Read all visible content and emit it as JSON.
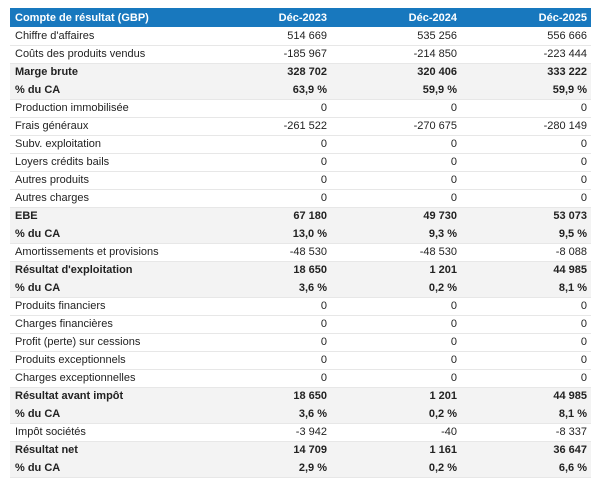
{
  "colors": {
    "header_bg": "#1878be",
    "header_text": "#ffffff",
    "band_bg": "#f3f3f3",
    "row_border": "#e7e7e7",
    "text": "#222222"
  },
  "table": {
    "header": {
      "label": "Compte de résultat (GBP)",
      "columns": [
        "Déc-2023",
        "Déc-2024",
        "Déc-2025"
      ]
    },
    "rows": [
      {
        "label": "Chiffre d'affaires",
        "values": [
          "514 669",
          "535 256",
          "556 666"
        ],
        "style": "normal"
      },
      {
        "label": "Coûts des produits vendus",
        "values": [
          "-185 967",
          "-214 850",
          "-223 444"
        ],
        "style": "normal"
      },
      {
        "label": "Marge brute",
        "values": [
          "328 702",
          "320 406",
          "333 222"
        ],
        "style": "band"
      },
      {
        "label": "% du CA",
        "values": [
          "63,9 %",
          "59,9 %",
          "59,9 %"
        ],
        "style": "band"
      },
      {
        "label": "Production immobilisée",
        "values": [
          "0",
          "0",
          "0"
        ],
        "style": "normal"
      },
      {
        "label": "Frais généraux",
        "values": [
          "-261 522",
          "-270 675",
          "-280 149"
        ],
        "style": "normal"
      },
      {
        "label": "Subv. exploitation",
        "values": [
          "0",
          "0",
          "0"
        ],
        "style": "normal"
      },
      {
        "label": "Loyers crédits bails",
        "values": [
          "0",
          "0",
          "0"
        ],
        "style": "normal"
      },
      {
        "label": "Autres produits",
        "values": [
          "0",
          "0",
          "0"
        ],
        "style": "normal"
      },
      {
        "label": "Autres charges",
        "values": [
          "0",
          "0",
          "0"
        ],
        "style": "normal"
      },
      {
        "label": "EBE",
        "values": [
          "67 180",
          "49 730",
          "53 073"
        ],
        "style": "band"
      },
      {
        "label": "% du CA",
        "values": [
          "13,0 %",
          "9,3 %",
          "9,5 %"
        ],
        "style": "band"
      },
      {
        "label": "Amortissements et provisions",
        "values": [
          "-48 530",
          "-48 530",
          "-8 088"
        ],
        "style": "normal"
      },
      {
        "label": "Résultat d'exploitation",
        "values": [
          "18 650",
          "1 201",
          "44 985"
        ],
        "style": "band"
      },
      {
        "label": "% du CA",
        "values": [
          "3,6 %",
          "0,2 %",
          "8,1 %"
        ],
        "style": "band"
      },
      {
        "label": "Produits financiers",
        "values": [
          "0",
          "0",
          "0"
        ],
        "style": "normal"
      },
      {
        "label": "Charges financières",
        "values": [
          "0",
          "0",
          "0"
        ],
        "style": "normal"
      },
      {
        "label": "Profit (perte) sur cessions",
        "values": [
          "0",
          "0",
          "0"
        ],
        "style": "normal"
      },
      {
        "label": "Produits exceptionnels",
        "values": [
          "0",
          "0",
          "0"
        ],
        "style": "normal"
      },
      {
        "label": "Charges exceptionnelles",
        "values": [
          "0",
          "0",
          "0"
        ],
        "style": "normal"
      },
      {
        "label": "Résultat avant impôt",
        "values": [
          "18 650",
          "1 201",
          "44 985"
        ],
        "style": "band"
      },
      {
        "label": "% du CA",
        "values": [
          "3,6 %",
          "0,2 %",
          "8,1 %"
        ],
        "style": "band"
      },
      {
        "label": "Impôt sociétés",
        "values": [
          "-3 942",
          "-40",
          "-8 337"
        ],
        "style": "normal"
      },
      {
        "label": "Résultat net",
        "values": [
          "14 709",
          "1 161",
          "36 647"
        ],
        "style": "band"
      },
      {
        "label": "% du CA",
        "values": [
          "2,9 %",
          "0,2 %",
          "6,6 %"
        ],
        "style": "band"
      }
    ]
  },
  "chart_data": {
    "type": "table",
    "title": "Compte de résultat (GBP)",
    "columns": [
      "Déc-2023",
      "Déc-2024",
      "Déc-2025"
    ],
    "currency": "GBP",
    "rows": [
      {
        "label": "Chiffre d'affaires",
        "values": [
          514669,
          535256,
          556666
        ],
        "unit": "GBP"
      },
      {
        "label": "Coûts des produits vendus",
        "values": [
          -185967,
          -214850,
          -223444
        ],
        "unit": "GBP"
      },
      {
        "label": "Marge brute",
        "values": [
          328702,
          320406,
          333222
        ],
        "unit": "GBP"
      },
      {
        "label": "% du CA",
        "values": [
          63.9,
          59.9,
          59.9
        ],
        "unit": "%"
      },
      {
        "label": "Production immobilisée",
        "values": [
          0,
          0,
          0
        ],
        "unit": "GBP"
      },
      {
        "label": "Frais généraux",
        "values": [
          -261522,
          -270675,
          -280149
        ],
        "unit": "GBP"
      },
      {
        "label": "Subv. exploitation",
        "values": [
          0,
          0,
          0
        ],
        "unit": "GBP"
      },
      {
        "label": "Loyers crédits bails",
        "values": [
          0,
          0,
          0
        ],
        "unit": "GBP"
      },
      {
        "label": "Autres produits",
        "values": [
          0,
          0,
          0
        ],
        "unit": "GBP"
      },
      {
        "label": "Autres charges",
        "values": [
          0,
          0,
          0
        ],
        "unit": "GBP"
      },
      {
        "label": "EBE",
        "values": [
          67180,
          49730,
          53073
        ],
        "unit": "GBP"
      },
      {
        "label": "% du CA",
        "values": [
          13.0,
          9.3,
          9.5
        ],
        "unit": "%"
      },
      {
        "label": "Amortissements et provisions",
        "values": [
          -48530,
          -48530,
          -8088
        ],
        "unit": "GBP"
      },
      {
        "label": "Résultat d'exploitation",
        "values": [
          18650,
          1201,
          44985
        ],
        "unit": "GBP"
      },
      {
        "label": "% du CA",
        "values": [
          3.6,
          0.2,
          8.1
        ],
        "unit": "%"
      },
      {
        "label": "Produits financiers",
        "values": [
          0,
          0,
          0
        ],
        "unit": "GBP"
      },
      {
        "label": "Charges financières",
        "values": [
          0,
          0,
          0
        ],
        "unit": "GBP"
      },
      {
        "label": "Profit (perte) sur cessions",
        "values": [
          0,
          0,
          0
        ],
        "unit": "GBP"
      },
      {
        "label": "Produits exceptionnels",
        "values": [
          0,
          0,
          0
        ],
        "unit": "GBP"
      },
      {
        "label": "Charges exceptionnelles",
        "values": [
          0,
          0,
          0
        ],
        "unit": "GBP"
      },
      {
        "label": "Résultat avant impôt",
        "values": [
          18650,
          1201,
          44985
        ],
        "unit": "GBP"
      },
      {
        "label": "% du CA",
        "values": [
          3.6,
          0.2,
          8.1
        ],
        "unit": "%"
      },
      {
        "label": "Impôt sociétés",
        "values": [
          -3942,
          -40,
          -8337
        ],
        "unit": "GBP"
      },
      {
        "label": "Résultat net",
        "values": [
          14709,
          1161,
          36647
        ],
        "unit": "GBP"
      },
      {
        "label": "% du CA",
        "values": [
          2.9,
          0.2,
          6.6
        ],
        "unit": "%"
      }
    ]
  }
}
